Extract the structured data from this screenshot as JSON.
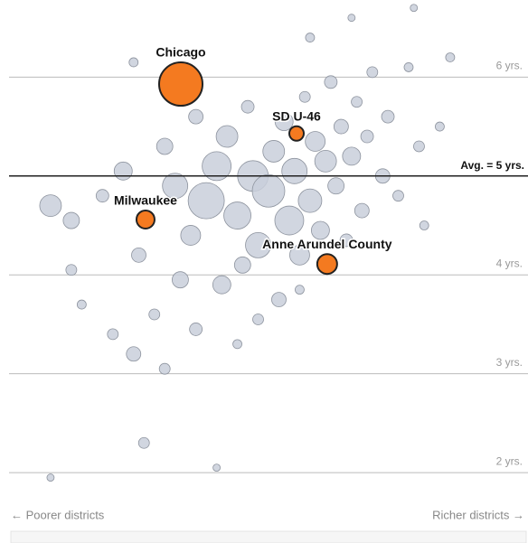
{
  "chart_data": {
    "type": "scatter",
    "xlim": [
      0,
      100
    ],
    "ylim": [
      1.8,
      6.78
    ],
    "yticks": [
      {
        "value": 2,
        "label": "2 yrs."
      },
      {
        "value": 3,
        "label": "3 yrs."
      },
      {
        "value": 4,
        "label": "4 yrs."
      },
      {
        "value": 6,
        "label": "6 yrs."
      }
    ],
    "average": {
      "value": 5,
      "label": "Avg. = 5 yrs."
    },
    "x_left_label": "← Poorer districts",
    "x_right_label": "Richer districts →",
    "grid": true,
    "background_points": {
      "color": "#c9cfdb",
      "x": [
        8,
        12,
        18,
        22,
        25,
        28,
        30,
        32,
        35,
        36,
        38,
        40,
        41,
        42,
        44,
        45,
        46,
        47,
        48,
        50,
        51,
        52,
        53,
        54,
        55,
        56,
        57,
        58,
        59,
        60,
        61,
        62,
        63,
        64,
        65,
        66,
        67,
        68,
        69,
        70,
        72,
        73,
        75,
        77,
        79,
        80,
        83,
        85,
        20,
        24,
        30,
        36,
        44,
        14,
        26,
        40,
        8,
        58,
        66,
        78,
        24,
        12,
        33,
        48,
        56
      ],
      "y": [
        4.7,
        4.55,
        4.8,
        5.05,
        4.2,
        3.6,
        5.3,
        4.9,
        4.4,
        5.6,
        4.75,
        5.1,
        3.9,
        5.4,
        4.6,
        4.1,
        5.7,
        5.0,
        4.3,
        4.85,
        5.25,
        3.75,
        5.55,
        4.55,
        5.05,
        4.2,
        5.8,
        4.75,
        5.35,
        4.45,
        5.15,
        5.95,
        4.9,
        5.5,
        4.35,
        5.2,
        5.75,
        4.65,
        5.4,
        6.05,
        5.0,
        5.6,
        4.8,
        6.1,
        5.3,
        4.5,
        5.5,
        6.2,
        3.4,
        3.2,
        3.05,
        3.45,
        3.3,
        3.7,
        2.3,
        2.05,
        1.95,
        6.4,
        6.6,
        6.7,
        6.15,
        4.05,
        3.95,
        3.55,
        3.85
      ],
      "sizes": [
        144,
        81,
        49,
        100,
        64,
        36,
        81,
        196,
        121,
        64,
        400,
        256,
        100,
        144,
        225,
        81,
        49,
        289,
        196,
        324,
        144,
        64,
        100,
        256,
        196,
        121,
        36,
        169,
        121,
        100,
        144,
        49,
        81,
        64,
        49,
        100,
        36,
        64,
        49,
        36,
        64,
        49,
        36,
        25,
        36,
        25,
        25,
        25,
        36,
        64,
        36,
        49,
        25,
        25,
        36,
        16,
        16,
        25,
        16,
        16,
        25,
        36,
        81,
        36,
        25
      ]
    },
    "highlighted_points": {
      "color": "#f47a20",
      "labels": [
        "Chicago",
        "SD U-46",
        "Milwaukee",
        "Anne Arundel County"
      ],
      "x": [
        33.1,
        55.4,
        26.3,
        61.3
      ],
      "y": [
        5.93,
        5.43,
        4.56,
        4.11
      ],
      "sizes": [
        576,
        64,
        100,
        121
      ]
    }
  }
}
